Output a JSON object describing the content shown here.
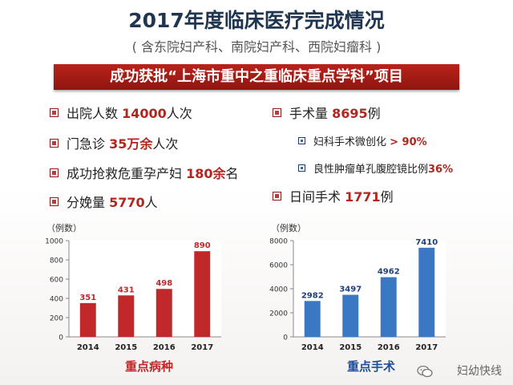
{
  "title": "2017年度临床医疗完成情况",
  "subtitle": "( 含东院妇产科、南院妇产科、西院妇瘤科 )",
  "banner": "成功获批“上海市重中之重临床重点学科”项目",
  "left_stats": [
    {
      "pre": "出院人数 ",
      "num": "14000",
      "post": "人次"
    },
    {
      "pre": "门急诊 ",
      "num": "35万余",
      "post": "人次"
    },
    {
      "pre": "成功抢救危重孕产妇 ",
      "num": "180余",
      "post": "名"
    },
    {
      "pre": "分娩量 ",
      "num": "5770",
      "post": "人"
    }
  ],
  "right_stats": {
    "surgery": {
      "pre": "手术量 ",
      "num": "8695",
      "post": "例"
    },
    "sub1": {
      "pre": "妇科手术微创化 ",
      "num": "> 90%"
    },
    "sub2": {
      "pre": "良性肿瘤单孔腹腔镜比例",
      "num": "36%"
    },
    "day_surgery": {
      "pre": "日间手术 ",
      "num": "1771",
      "post": "例"
    }
  },
  "chart_data": [
    {
      "type": "bar",
      "unit_label": "（例数）",
      "categories": [
        "2014",
        "2015",
        "2016",
        "2017"
      ],
      "values": [
        351,
        431,
        498,
        890
      ],
      "ylim": [
        0,
        1000
      ],
      "yticks": [
        0,
        200,
        400,
        600,
        800,
        1000
      ],
      "color": "#c0282a",
      "label_color": "#c0282a",
      "caption": "重点病种",
      "caption_color": "#c0282a"
    },
    {
      "type": "bar",
      "unit_label": "（例数）",
      "categories": [
        "2014",
        "2015",
        "2016",
        "2017"
      ],
      "values": [
        2982,
        3497,
        4962,
        7410
      ],
      "ylim": [
        0,
        8000
      ],
      "yticks": [
        0,
        2000,
        4000,
        6000,
        8000
      ],
      "color": "#3b78c3",
      "label_color": "#1f3f7a",
      "caption": "重点手术",
      "caption_color": "#1f4e9a"
    }
  ],
  "watermark": "妇幼快线",
  "icons": {
    "watermark": "wechat-icon"
  }
}
